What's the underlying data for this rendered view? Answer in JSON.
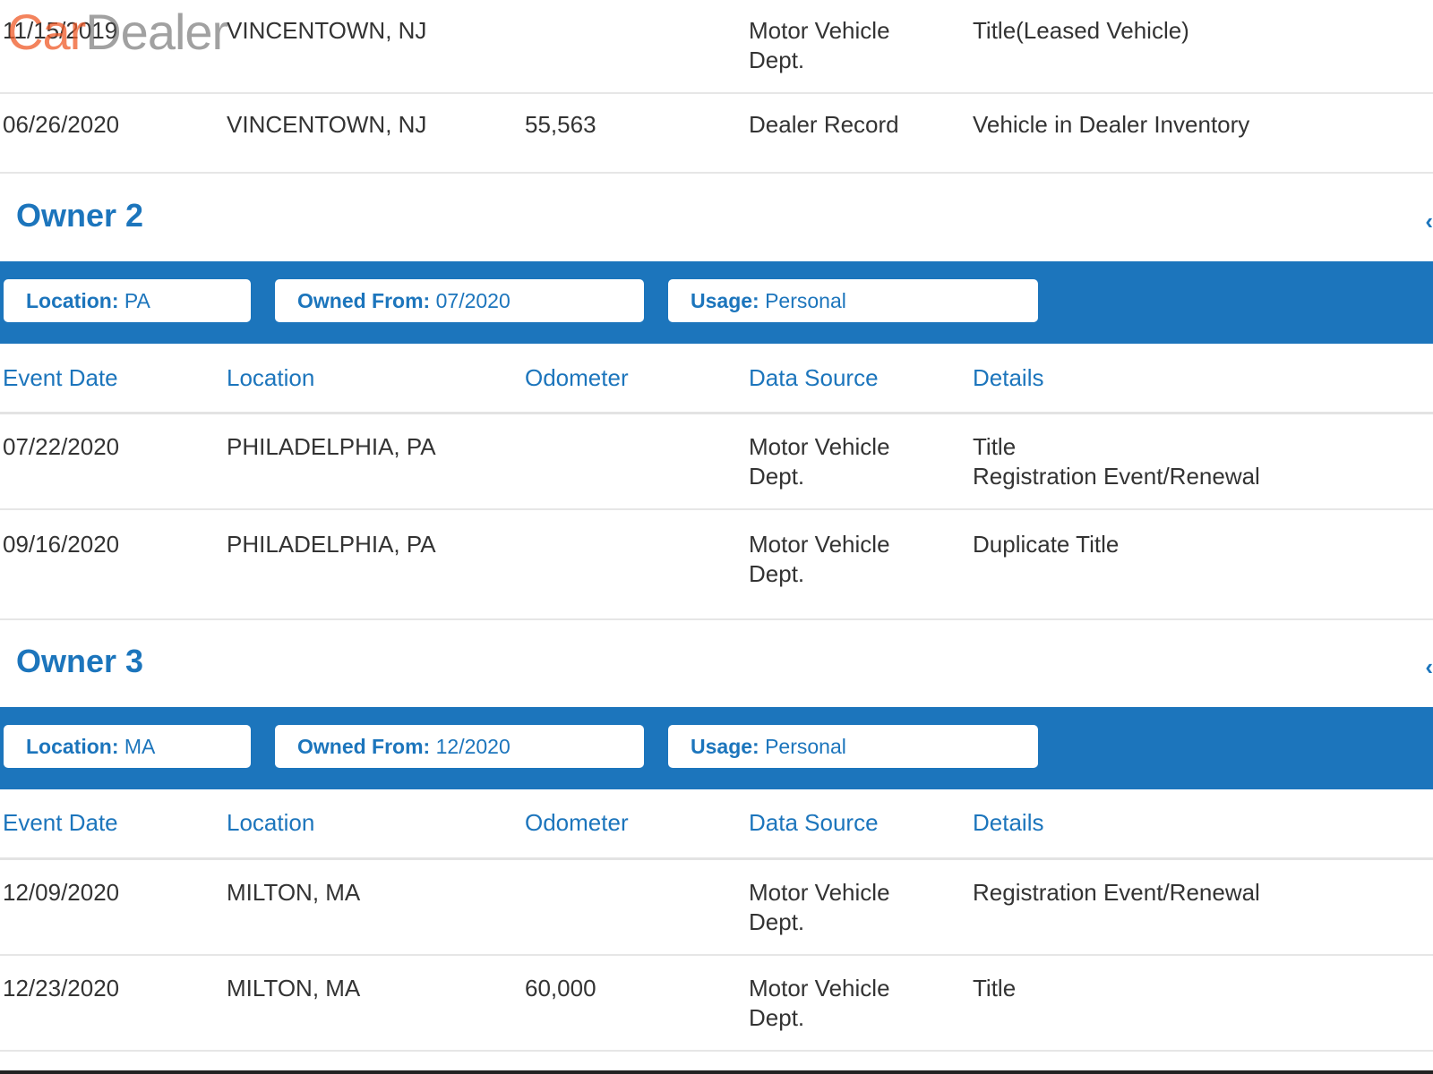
{
  "watermark": {
    "part1": "Car",
    "part2": "Dealer"
  },
  "owner1_rows": [
    {
      "date": "11/15/2019",
      "location": "VINCENTOWN, NJ",
      "odometer": "",
      "source": "Motor Vehicle\nDept.",
      "details": "Title(Leased Vehicle)"
    },
    {
      "date": "06/26/2020",
      "location": "VINCENTOWN, NJ",
      "odometer": "55,563",
      "source": "Dealer Record",
      "details": "Vehicle in Dealer Inventory"
    }
  ],
  "owners": [
    {
      "title": "Owner 2",
      "location_label": "Location:",
      "location": "PA",
      "owned_label": "Owned From:",
      "owned": "07/2020",
      "usage_label": "Usage:",
      "usage": "Personal"
    },
    {
      "title": "Owner 3",
      "location_label": "Location:",
      "location": "MA",
      "owned_label": "Owned From:",
      "owned": "12/2020",
      "usage_label": "Usage:",
      "usage": "Personal"
    }
  ],
  "columns": [
    "Event Date",
    "Location",
    "Odometer",
    "Data Source",
    "Details"
  ],
  "owner2_rows": [
    {
      "date": "07/22/2020",
      "location": "PHILADELPHIA, PA",
      "odometer": "",
      "source": "Motor Vehicle\nDept.",
      "details": "Title\nRegistration Event/Renewal"
    },
    {
      "date": "09/16/2020",
      "location": "PHILADELPHIA, PA",
      "odometer": "",
      "source": "Motor Vehicle\nDept.",
      "details": "Duplicate Title"
    }
  ],
  "owner3_rows": [
    {
      "date": "12/09/2020",
      "location": "MILTON, MA",
      "odometer": "",
      "source": "Motor Vehicle\nDept.",
      "details": "Registration Event/Renewal"
    },
    {
      "date": "12/23/2020",
      "location": "MILTON, MA",
      "odometer": "60,000",
      "source": "Motor Vehicle\nDept.",
      "details": "Title"
    }
  ],
  "colors": {
    "accent": "#1c75bc",
    "watermark_orange": "#f05a28"
  },
  "icons": {
    "expand": "chevron-left-icon"
  }
}
